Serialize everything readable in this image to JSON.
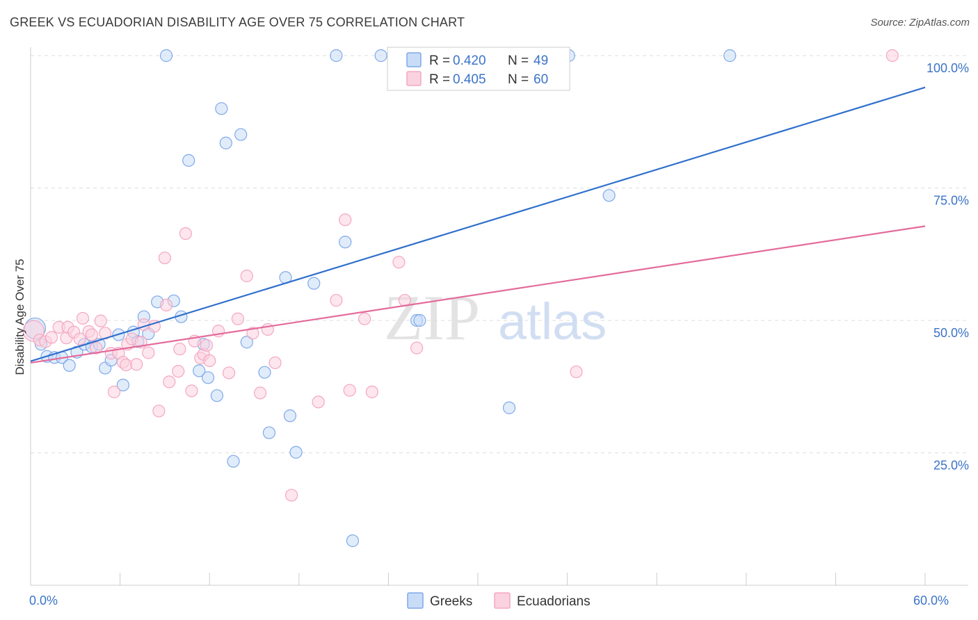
{
  "title": "GREEK VS ECUADORIAN DISABILITY AGE OVER 75 CORRELATION CHART",
  "source": "Source: ZipAtlas.com",
  "watermark": {
    "zip": "ZIP",
    "atlas": "atlas"
  },
  "legend": {
    "rows": [
      {
        "r_label": "R = ",
        "r_value": "0.420",
        "n_label": "N = ",
        "n_value": "49"
      },
      {
        "r_label": "R = ",
        "r_value": "0.405",
        "n_label": "N = ",
        "n_value": "60"
      }
    ]
  },
  "chart_data": {
    "type": "scatter",
    "title": "GREEK VS ECUADORIAN DISABILITY AGE OVER 75 CORRELATION CHART",
    "ylabel": "Disability Age Over 75",
    "xlabel": "",
    "xlim": [
      0,
      60
    ],
    "ylim": [
      0,
      100
    ],
    "x_tick_labels": [
      {
        "value": 0,
        "label": "0.0%"
      },
      {
        "value": 60,
        "label": "60.0%"
      }
    ],
    "y_tick_labels": [
      {
        "value": 25,
        "label": "25.0%"
      },
      {
        "value": 50,
        "label": "50.0%"
      },
      {
        "value": 75,
        "label": "75.0%"
      },
      {
        "value": 100,
        "label": "100.0%"
      }
    ],
    "grid": true,
    "legend_position": "top-center",
    "series": [
      {
        "name": "Greeks",
        "color": "#7ea9e8",
        "line_color": "#2f6fcc",
        "R": 0.42,
        "N": 49,
        "trend": {
          "x0": 0,
          "y0": 42.3,
          "x1": 60,
          "y1": 94.0
        },
        "points": [
          [
            0.3,
            48.5
          ],
          [
            0.7,
            45.5
          ],
          [
            1.1,
            43.2
          ],
          [
            1.6,
            43.0
          ],
          [
            2.1,
            43.0
          ],
          [
            2.6,
            41.5
          ],
          [
            3.1,
            44.0
          ],
          [
            3.6,
            45.5
          ],
          [
            4.1,
            45.0
          ],
          [
            4.6,
            45.5
          ],
          [
            5.0,
            41.0
          ],
          [
            5.4,
            42.5
          ],
          [
            5.9,
            47.3
          ],
          [
            6.2,
            37.8
          ],
          [
            6.9,
            47.8
          ],
          [
            7.2,
            46.0
          ],
          [
            7.6,
            50.7
          ],
          [
            7.9,
            47.5
          ],
          [
            8.5,
            53.5
          ],
          [
            9.1,
            100
          ],
          [
            9.6,
            53.7
          ],
          [
            10.1,
            50.7
          ],
          [
            10.6,
            80.2
          ],
          [
            11.3,
            40.5
          ],
          [
            11.6,
            45.5
          ],
          [
            11.9,
            39.2
          ],
          [
            12.5,
            35.8
          ],
          [
            12.8,
            90.0
          ],
          [
            13.1,
            83.5
          ],
          [
            13.6,
            23.4
          ],
          [
            14.1,
            85.1
          ],
          [
            14.5,
            45.9
          ],
          [
            15.7,
            40.2
          ],
          [
            16.0,
            28.8
          ],
          [
            17.1,
            58.1
          ],
          [
            17.4,
            32.0
          ],
          [
            17.8,
            25.1
          ],
          [
            19.0,
            57.0
          ],
          [
            20.5,
            100
          ],
          [
            21.1,
            64.8
          ],
          [
            21.6,
            8.4
          ],
          [
            23.5,
            100
          ],
          [
            24.7,
            100
          ],
          [
            25.9,
            50.0
          ],
          [
            32.1,
            33.5
          ],
          [
            36.1,
            100
          ],
          [
            38.8,
            73.6
          ],
          [
            46.9,
            100
          ],
          [
            26.1,
            50.0
          ]
        ]
      },
      {
        "name": "Ecuadorians",
        "color": "#f4a7c1",
        "line_color": "#e36b9b",
        "R": 0.405,
        "N": 60,
        "trend": {
          "x0": 0,
          "y0": 42.0,
          "x1": 60,
          "y1": 67.8
        },
        "points": [
          [
            0.2,
            48.0
          ],
          [
            0.6,
            46.3
          ],
          [
            1.0,
            46.0
          ],
          [
            1.4,
            46.8
          ],
          [
            1.9,
            48.7
          ],
          [
            2.4,
            46.7
          ],
          [
            2.5,
            48.7
          ],
          [
            2.9,
            47.8
          ],
          [
            3.3,
            46.5
          ],
          [
            3.5,
            50.4
          ],
          [
            3.9,
            47.9
          ],
          [
            4.1,
            47.3
          ],
          [
            4.4,
            44.8
          ],
          [
            4.7,
            49.9
          ],
          [
            5.0,
            47.6
          ],
          [
            5.4,
            43.8
          ],
          [
            5.6,
            36.5
          ],
          [
            5.9,
            43.8
          ],
          [
            6.2,
            42.1
          ],
          [
            6.4,
            41.6
          ],
          [
            6.5,
            45.5
          ],
          [
            6.8,
            46.5
          ],
          [
            7.1,
            41.7
          ],
          [
            7.4,
            45.9
          ],
          [
            7.6,
            49.2
          ],
          [
            7.9,
            43.9
          ],
          [
            8.3,
            48.9
          ],
          [
            8.6,
            32.9
          ],
          [
            9.1,
            52.9
          ],
          [
            9.0,
            61.8
          ],
          [
            9.3,
            38.4
          ],
          [
            9.9,
            40.4
          ],
          [
            10.0,
            44.6
          ],
          [
            10.4,
            66.4
          ],
          [
            10.8,
            36.7
          ],
          [
            11.0,
            46.1
          ],
          [
            11.4,
            42.9
          ],
          [
            11.6,
            43.6
          ],
          [
            11.8,
            45.3
          ],
          [
            12.0,
            42.4
          ],
          [
            12.6,
            48.0
          ],
          [
            13.3,
            40.1
          ],
          [
            13.9,
            50.3
          ],
          [
            14.5,
            58.4
          ],
          [
            14.9,
            47.6
          ],
          [
            15.4,
            36.3
          ],
          [
            15.9,
            48.3
          ],
          [
            16.4,
            42.0
          ],
          [
            17.5,
            17.0
          ],
          [
            19.3,
            34.6
          ],
          [
            20.5,
            53.8
          ],
          [
            21.1,
            69.0
          ],
          [
            21.4,
            36.8
          ],
          [
            22.4,
            50.3
          ],
          [
            22.9,
            36.5
          ],
          [
            24.7,
            61.0
          ],
          [
            25.1,
            53.8
          ],
          [
            25.9,
            44.8
          ],
          [
            36.6,
            40.3
          ],
          [
            57.8,
            100
          ]
        ]
      }
    ]
  }
}
